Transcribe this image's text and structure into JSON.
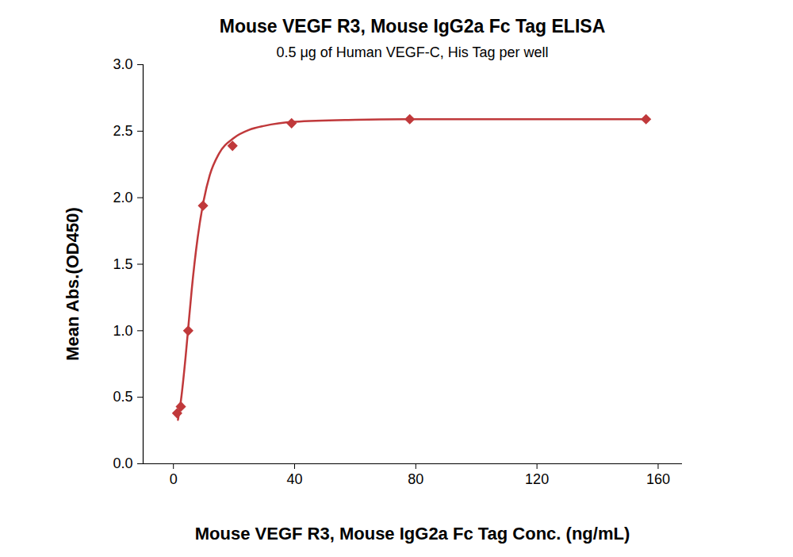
{
  "chart_data": {
    "type": "scatter",
    "title": "Mouse VEGF R3, Mouse IgG2a Fc Tag ELISA",
    "subtitle": "0.5 μg of Human VEGF-C, His Tag per well",
    "x_label": "Mouse VEGF R3, Mouse IgG2a Fc Tag Conc. (ng/mL)",
    "y_label": "Mean Abs.(OD450)",
    "x": [
      1.22,
      2.44,
      4.88,
      9.77,
      19.5,
      39,
      78,
      156
    ],
    "values": [
      0.38,
      0.43,
      1.0,
      1.94,
      2.39,
      2.56,
      2.59,
      2.59
    ],
    "color": "#c0393b",
    "marker": "diamond",
    "curve": {
      "x": [
        1.5,
        2.5,
        4,
        5,
        6,
        8,
        10,
        12,
        15,
        20,
        25,
        30,
        40,
        60,
        80,
        120,
        156
      ],
      "values": [
        0.33,
        0.48,
        0.8,
        1.05,
        1.3,
        1.7,
        1.98,
        2.17,
        2.33,
        2.45,
        2.51,
        2.54,
        2.57,
        2.585,
        2.59,
        2.59,
        2.59
      ],
      "line_style": "solid"
    },
    "xlim": [
      -10,
      168
    ],
    "xticks": [
      0,
      40,
      80,
      120,
      160
    ],
    "ylim": [
      0,
      3
    ],
    "yticks": [
      {
        "value": 0,
        "label": "0.0"
      },
      0.5,
      {
        "value": 1,
        "label": "1.0"
      },
      1.5,
      {
        "value": 2,
        "label": "2.0"
      },
      2.5,
      {
        "value": 3,
        "label": "3.0"
      }
    ],
    "grid": false
  }
}
